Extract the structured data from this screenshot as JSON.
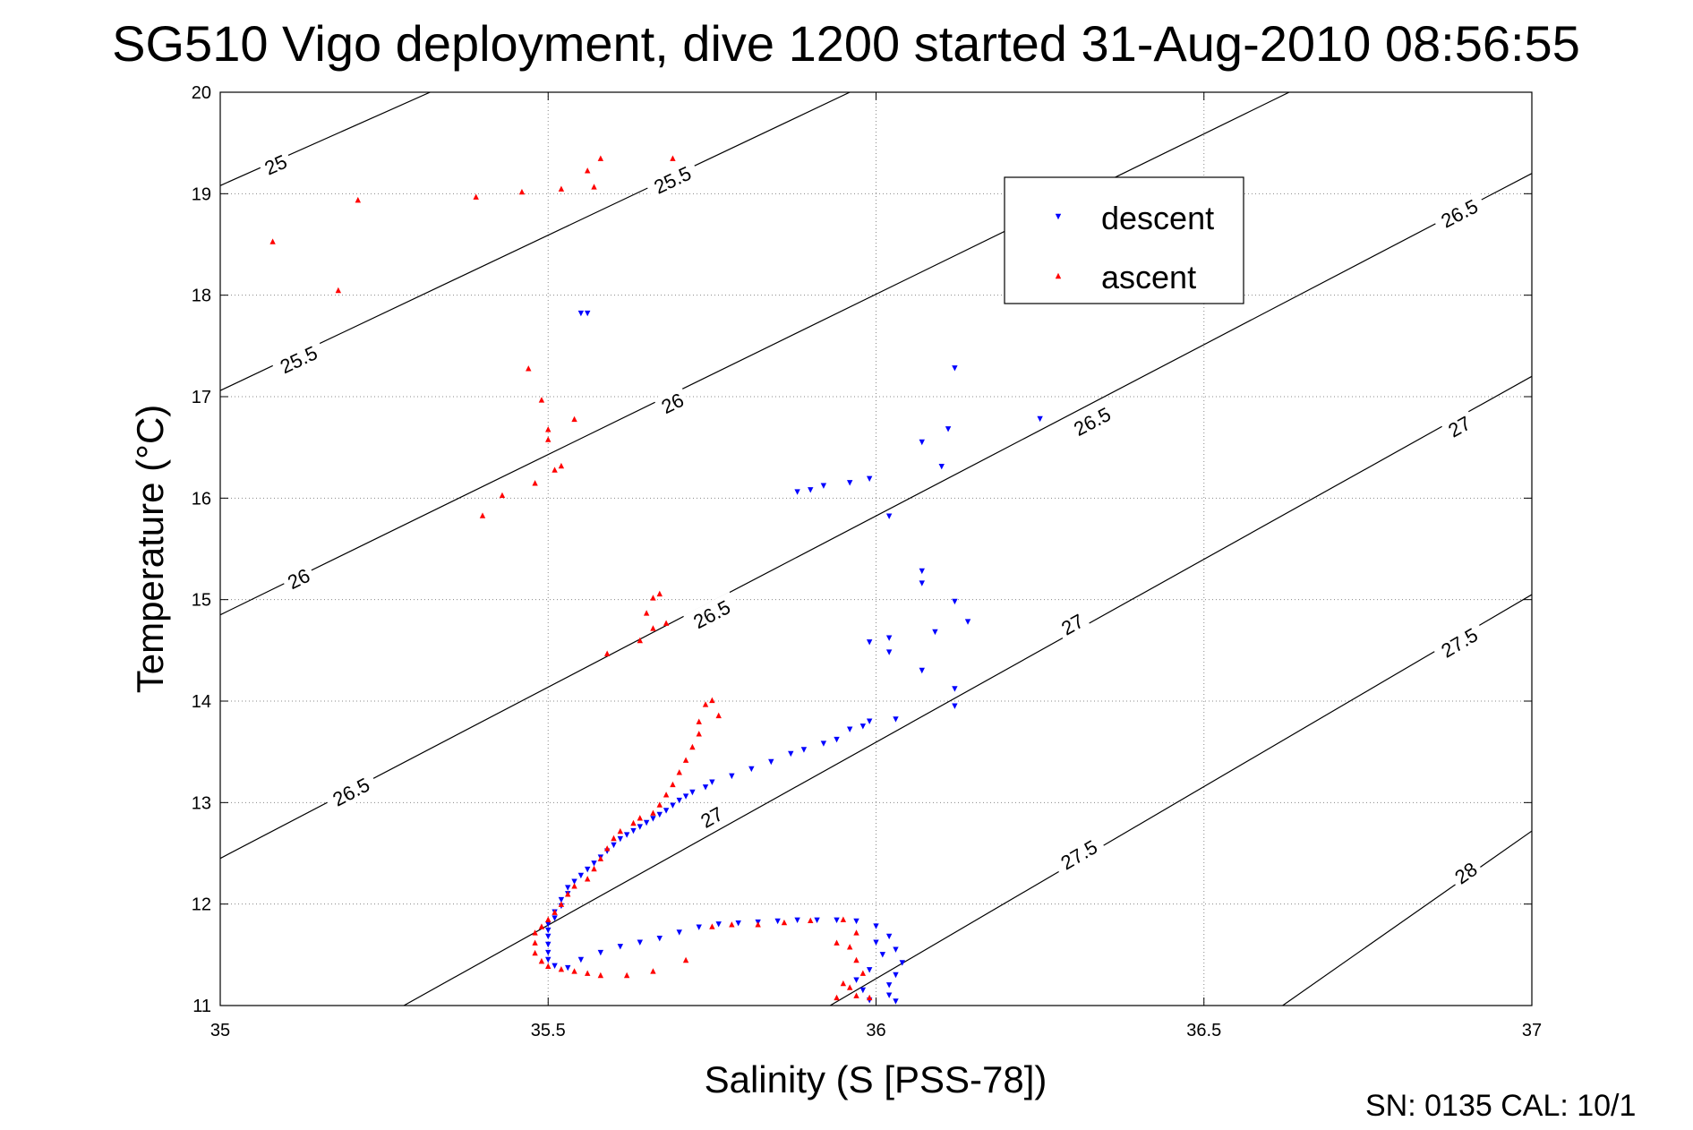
{
  "chart_data": {
    "type": "scatter",
    "title": "SG510 Vigo deployment, dive 1200 started 31-Aug-2010 08:56:55",
    "xlabel": "Salinity (S [PSS-78])",
    "ylabel": "Temperature (°C)",
    "xlim": [
      35,
      37
    ],
    "ylim": [
      11,
      20
    ],
    "x_ticks": [
      35,
      35.5,
      36,
      36.5,
      37
    ],
    "x_tick_labels": [
      "35",
      "35.5",
      "36",
      "36.5",
      "37"
    ],
    "y_ticks": [
      11,
      12,
      13,
      14,
      15,
      16,
      17,
      18,
      19,
      20
    ],
    "y_tick_labels": [
      "11",
      "12",
      "13",
      "14",
      "15",
      "16",
      "17",
      "18",
      "19",
      "20"
    ],
    "grid": true,
    "legend_position": "top-right",
    "footer": "SN: 0135  CAL: 10/1",
    "density_contours": [
      {
        "sigma": "25",
        "points": [
          [
            35.0,
            19.08
          ],
          [
            35.32,
            20.0
          ]
        ],
        "labels": [
          [
            35.085,
            19.28
          ]
        ]
      },
      {
        "sigma": "25.5",
        "points": [
          [
            35.0,
            17.06
          ],
          [
            35.96,
            20.0
          ]
        ],
        "labels": [
          [
            35.12,
            17.36
          ],
          [
            35.69,
            19.13
          ]
        ]
      },
      {
        "sigma": "26",
        "points": [
          [
            35.0,
            14.85
          ],
          [
            36.63,
            20.0
          ]
        ],
        "labels": [
          [
            35.12,
            15.2
          ],
          [
            35.69,
            16.93
          ]
        ]
      },
      {
        "sigma": "26.5",
        "points": [
          [
            35.0,
            12.45
          ],
          [
            37.0,
            19.2
          ]
        ],
        "labels": [
          [
            35.2,
            13.1
          ],
          [
            35.75,
            14.85
          ],
          [
            36.33,
            16.75
          ],
          [
            36.89,
            18.8
          ]
        ]
      },
      {
        "sigma": "27",
        "points": [
          [
            35.28,
            11.0
          ],
          [
            37.0,
            17.2
          ]
        ],
        "labels": [
          [
            35.75,
            12.85
          ],
          [
            36.3,
            14.75
          ],
          [
            36.89,
            16.7
          ]
        ]
      },
      {
        "sigma": "27.5",
        "points": [
          [
            35.93,
            11.0
          ],
          [
            37.0,
            15.05
          ]
        ],
        "labels": [
          [
            36.31,
            12.48
          ],
          [
            36.89,
            14.57
          ]
        ]
      },
      {
        "sigma": "28",
        "points": [
          [
            36.62,
            11.0
          ],
          [
            37.0,
            12.72
          ]
        ],
        "labels": [
          [
            36.9,
            12.3
          ]
        ]
      }
    ],
    "series": [
      {
        "name": "descent",
        "color": "#0000ff",
        "marker": "triangle-down",
        "points": [
          [
            35.55,
            17.82
          ],
          [
            35.56,
            17.82
          ],
          [
            36.12,
            17.28
          ],
          [
            36.25,
            16.78
          ],
          [
            36.11,
            16.68
          ],
          [
            36.07,
            16.55
          ],
          [
            36.1,
            16.31
          ],
          [
            35.88,
            16.06
          ],
          [
            35.9,
            16.08
          ],
          [
            35.92,
            16.12
          ],
          [
            35.96,
            16.15
          ],
          [
            35.99,
            16.19
          ],
          [
            36.02,
            15.82
          ],
          [
            36.07,
            15.28
          ],
          [
            36.07,
            15.16
          ],
          [
            36.12,
            14.98
          ],
          [
            36.14,
            14.78
          ],
          [
            36.09,
            14.68
          ],
          [
            35.99,
            14.58
          ],
          [
            36.02,
            14.62
          ],
          [
            36.02,
            14.48
          ],
          [
            36.07,
            14.3
          ],
          [
            36.12,
            14.12
          ],
          [
            36.12,
            13.95
          ],
          [
            36.03,
            13.82
          ],
          [
            35.99,
            13.8
          ],
          [
            35.98,
            13.75
          ],
          [
            35.96,
            13.72
          ],
          [
            35.94,
            13.62
          ],
          [
            35.92,
            13.58
          ],
          [
            35.89,
            13.52
          ],
          [
            35.87,
            13.48
          ],
          [
            35.84,
            13.4
          ],
          [
            35.81,
            13.33
          ],
          [
            35.78,
            13.26
          ],
          [
            35.75,
            13.2
          ],
          [
            35.74,
            13.15
          ],
          [
            35.72,
            13.1
          ],
          [
            35.71,
            13.06
          ],
          [
            35.7,
            13.02
          ],
          [
            35.69,
            12.97
          ],
          [
            35.68,
            12.92
          ],
          [
            35.67,
            12.88
          ],
          [
            35.66,
            12.84
          ],
          [
            35.65,
            12.8
          ],
          [
            35.64,
            12.76
          ],
          [
            35.63,
            12.72
          ],
          [
            35.62,
            12.68
          ],
          [
            35.61,
            12.64
          ],
          [
            35.6,
            12.58
          ],
          [
            35.59,
            12.52
          ],
          [
            35.58,
            12.46
          ],
          [
            35.57,
            12.4
          ],
          [
            35.56,
            12.34
          ],
          [
            35.55,
            12.28
          ],
          [
            35.54,
            12.22
          ],
          [
            35.53,
            12.16
          ],
          [
            35.53,
            12.1
          ],
          [
            35.52,
            12.04
          ],
          [
            35.52,
            11.98
          ],
          [
            35.51,
            11.92
          ],
          [
            35.51,
            11.86
          ],
          [
            35.5,
            11.8
          ],
          [
            35.5,
            11.74
          ],
          [
            35.5,
            11.68
          ],
          [
            35.5,
            11.6
          ],
          [
            35.5,
            11.52
          ],
          [
            35.5,
            11.45
          ],
          [
            35.51,
            11.39
          ],
          [
            35.53,
            11.37
          ],
          [
            35.55,
            11.45
          ],
          [
            35.58,
            11.52
          ],
          [
            35.61,
            11.58
          ],
          [
            35.64,
            11.62
          ],
          [
            35.67,
            11.66
          ],
          [
            35.7,
            11.72
          ],
          [
            35.73,
            11.77
          ],
          [
            35.76,
            11.8
          ],
          [
            35.79,
            11.81
          ],
          [
            35.82,
            11.82
          ],
          [
            35.85,
            11.83
          ],
          [
            35.88,
            11.84
          ],
          [
            35.91,
            11.84
          ],
          [
            35.94,
            11.84
          ],
          [
            35.97,
            11.83
          ],
          [
            36.0,
            11.78
          ],
          [
            36.02,
            11.68
          ],
          [
            36.03,
            11.55
          ],
          [
            36.04,
            11.42
          ],
          [
            36.03,
            11.3
          ],
          [
            36.02,
            11.2
          ],
          [
            36.02,
            11.1
          ],
          [
            36.03,
            11.04
          ],
          [
            35.99,
            11.05
          ],
          [
            35.98,
            11.15
          ],
          [
            35.97,
            11.25
          ],
          [
            35.99,
            11.35
          ],
          [
            36.01,
            11.5
          ],
          [
            36.0,
            11.62
          ]
        ]
      },
      {
        "name": "ascent",
        "color": "#ff0000",
        "marker": "triangle-up",
        "points": [
          [
            35.58,
            19.35
          ],
          [
            35.69,
            19.35
          ],
          [
            35.56,
            19.23
          ],
          [
            35.57,
            19.07
          ],
          [
            35.52,
            19.05
          ],
          [
            35.46,
            19.02
          ],
          [
            35.39,
            18.97
          ],
          [
            35.21,
            18.94
          ],
          [
            35.08,
            18.53
          ],
          [
            35.18,
            18.05
          ],
          [
            35.47,
            17.28
          ],
          [
            35.49,
            16.97
          ],
          [
            35.54,
            16.78
          ],
          [
            35.5,
            16.68
          ],
          [
            35.5,
            16.58
          ],
          [
            35.52,
            16.32
          ],
          [
            35.51,
            16.28
          ],
          [
            35.48,
            16.15
          ],
          [
            35.43,
            16.03
          ],
          [
            35.4,
            15.83
          ],
          [
            35.67,
            15.06
          ],
          [
            35.66,
            15.02
          ],
          [
            35.65,
            14.87
          ],
          [
            35.68,
            14.77
          ],
          [
            35.66,
            14.72
          ],
          [
            35.64,
            14.6
          ],
          [
            35.59,
            14.47
          ],
          [
            35.75,
            14.01
          ],
          [
            35.74,
            13.97
          ],
          [
            35.76,
            13.86
          ],
          [
            35.73,
            13.8
          ],
          [
            35.73,
            13.68
          ],
          [
            35.72,
            13.55
          ],
          [
            35.71,
            13.42
          ],
          [
            35.7,
            13.3
          ],
          [
            35.69,
            13.18
          ],
          [
            35.68,
            13.08
          ],
          [
            35.67,
            12.98
          ],
          [
            35.66,
            12.9
          ],
          [
            35.64,
            12.85
          ],
          [
            35.63,
            12.8
          ],
          [
            35.61,
            12.72
          ],
          [
            35.6,
            12.65
          ],
          [
            35.59,
            12.55
          ],
          [
            35.58,
            12.45
          ],
          [
            35.57,
            12.35
          ],
          [
            35.56,
            12.25
          ],
          [
            35.54,
            12.18
          ],
          [
            35.53,
            12.1
          ],
          [
            35.52,
            12.0
          ],
          [
            35.51,
            11.92
          ],
          [
            35.5,
            11.85
          ],
          [
            35.49,
            11.78
          ],
          [
            35.48,
            11.72
          ],
          [
            35.48,
            11.62
          ],
          [
            35.48,
            11.52
          ],
          [
            35.49,
            11.44
          ],
          [
            35.5,
            11.39
          ],
          [
            35.52,
            11.36
          ],
          [
            35.54,
            11.34
          ],
          [
            35.56,
            11.32
          ],
          [
            35.58,
            11.3
          ],
          [
            35.62,
            11.3
          ],
          [
            35.66,
            11.34
          ],
          [
            35.71,
            11.45
          ],
          [
            35.75,
            11.78
          ],
          [
            35.78,
            11.8
          ],
          [
            35.82,
            11.8
          ],
          [
            35.86,
            11.82
          ],
          [
            35.9,
            11.84
          ],
          [
            35.95,
            11.85
          ],
          [
            35.97,
            11.72
          ],
          [
            35.96,
            11.58
          ],
          [
            35.97,
            11.45
          ],
          [
            35.98,
            11.32
          ],
          [
            35.96,
            11.18
          ],
          [
            35.97,
            11.1
          ],
          [
            35.99,
            11.08
          ],
          [
            35.94,
            11.08
          ],
          [
            35.95,
            11.22
          ],
          [
            35.94,
            11.62
          ]
        ]
      }
    ]
  }
}
